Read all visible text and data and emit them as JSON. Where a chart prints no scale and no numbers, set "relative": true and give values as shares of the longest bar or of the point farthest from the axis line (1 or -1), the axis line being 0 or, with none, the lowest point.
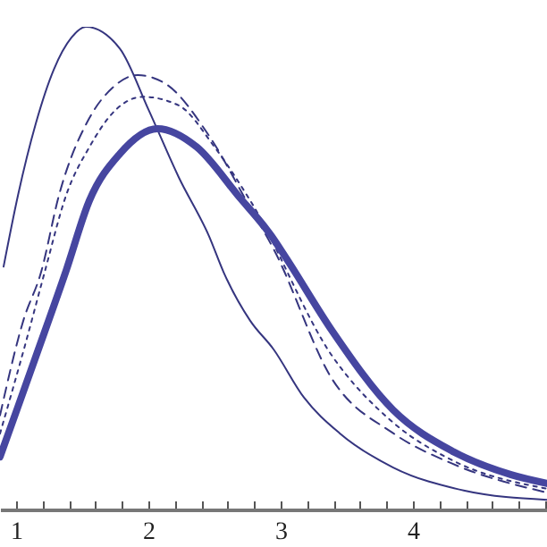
{
  "chart_data": {
    "type": "line",
    "relative": true,
    "xlim": [
      0.878,
      5.014
    ],
    "xticks": [
      1,
      {
        "value": 1.2,
        "label": null
      },
      {
        "value": 1.4,
        "label": null
      },
      {
        "value": 1.6,
        "label": null
      },
      {
        "value": 1.8,
        "label": null
      },
      2,
      {
        "value": 2.2,
        "label": null
      },
      {
        "value": 2.4,
        "label": null
      },
      {
        "value": 2.6,
        "label": null
      },
      {
        "value": 2.8,
        "label": null
      },
      3,
      {
        "value": 3.2,
        "label": null
      },
      {
        "value": 3.4,
        "label": null
      },
      {
        "value": 3.6,
        "label": null
      },
      {
        "value": 3.8,
        "label": null
      },
      4,
      {
        "value": 4.2,
        "label": null
      },
      {
        "value": 4.4,
        "label": null
      },
      {
        "value": 4.6,
        "label": null
      },
      {
        "value": 4.8,
        "label": null
      },
      {
        "value": 5,
        "label": null
      }
    ],
    "series": [
      {
        "color": "#35357f",
        "line_style": "solid",
        "x": [
          0.905,
          1.014,
          1.149,
          1.284,
          1.419,
          1.527,
          1.784,
          2.0,
          2.23,
          2.459,
          2.568,
          2.77,
          2.946,
          3.176,
          3.446,
          3.851,
          4.392,
          5.014
        ],
        "values": [
          0.503,
          0.651,
          0.8,
          0.911,
          0.978,
          1,
          0.955,
          0.829,
          0.688,
          0.566,
          0.492,
          0.391,
          0.332,
          0.232,
          0.158,
          0.087,
          0.039,
          0.02
        ]
      },
      {
        "color": "#35357f",
        "line_style": "dashed",
        "x": [
          0.878,
          1.054,
          1.189,
          1.324,
          1.554,
          1.73,
          1.919,
          2.135,
          2.459,
          2.77,
          2.946,
          3.392,
          3.851,
          4.297,
          5.014
        ],
        "values": [
          0.195,
          0.391,
          0.492,
          0.651,
          0.811,
          0.874,
          0.9,
          0.881,
          0.774,
          0.625,
          0.54,
          0.269,
          0.158,
          0.095,
          0.035
        ]
      },
      {
        "color": "#35357f",
        "line_style": "dotted",
        "x": [
          0.878,
          1.081,
          1.216,
          1.378,
          1.554,
          1.757,
          1.959,
          2.23,
          2.5,
          2.77,
          3.392,
          3.851,
          4.297,
          5.014
        ],
        "values": [
          0.157,
          0.354,
          0.492,
          0.651,
          0.751,
          0.829,
          0.855,
          0.837,
          0.751,
          0.64,
          0.317,
          0.18,
          0.102,
          0.043
        ]
      },
      {
        "color": "#4646a0",
        "line_style": "solid",
        "x": [
          0.878,
          1.014,
          1.149,
          1.378,
          1.554,
          1.784,
          2.068,
          2.365,
          2.676,
          2.932,
          3.041,
          3.392,
          3.851,
          4.297,
          4.743,
          5.014
        ],
        "values": [
          0.109,
          0.213,
          0.317,
          0.495,
          0.64,
          0.737,
          0.789,
          0.751,
          0.651,
          0.566,
          0.521,
          0.369,
          0.206,
          0.121,
          0.072,
          0.054
        ]
      }
    ]
  }
}
